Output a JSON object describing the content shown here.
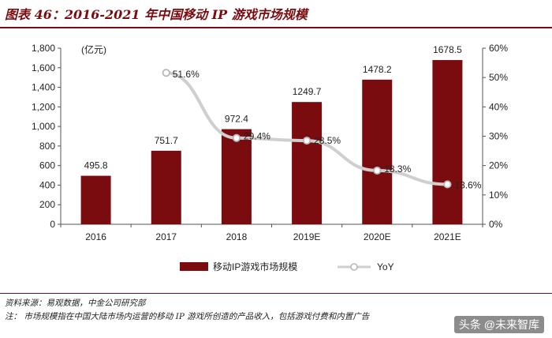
{
  "header": {
    "title": "图表 46：2016-2021 年中国移动 IP 游戏市场规模"
  },
  "chart_data": {
    "type": "bar",
    "categories": [
      "2016",
      "2017",
      "2018",
      "2019E",
      "2020E",
      "2021E"
    ],
    "series": [
      {
        "name": "移动IP游戏市场规模",
        "type": "bar",
        "axis": "left",
        "values": [
          495.8,
          751.7,
          972.4,
          1249.7,
          1478.2,
          1678.5
        ],
        "labels": [
          "495.8",
          "751.7",
          "972.4",
          "1249.7",
          "1478.2",
          "1678.5"
        ]
      },
      {
        "name": "YoY",
        "type": "line",
        "axis": "right",
        "values": [
          null,
          51.6,
          29.4,
          28.5,
          18.3,
          13.6
        ],
        "labels": [
          "",
          "51.6%",
          "29.4%",
          "28.5%",
          "18.3%",
          "13.6%"
        ]
      }
    ],
    "y_left": {
      "unit_label": "(亿元)",
      "min": 0,
      "max": 1800,
      "ticks": [
        0,
        200,
        400,
        600,
        800,
        1000,
        1200,
        1400,
        1600,
        1800
      ],
      "tick_labels": [
        "0",
        "200",
        "400",
        "600",
        "800",
        "1,000",
        "1,200",
        "1,400",
        "1,600",
        "1,800"
      ]
    },
    "y_right": {
      "min": 0,
      "max": 60,
      "ticks": [
        0,
        10,
        20,
        30,
        40,
        50,
        60
      ],
      "tick_labels": [
        "0%",
        "10%",
        "20%",
        "30%",
        "40%",
        "50%",
        "60%"
      ]
    },
    "legend_position": "bottom-center",
    "grid": false,
    "colors": {
      "bar": "#7a0c10",
      "line": "#cfcfcf",
      "marker_stroke": "#b8b8b8"
    }
  },
  "footer": {
    "source": "资料来源：易观数据，中金公司研究部",
    "note": "注：  市场规模指在中国大陆市场内运营的移动 IP 游戏所创造的产品收入，包括游戏付费和内置广告"
  },
  "watermark": "头条 @未来智库"
}
